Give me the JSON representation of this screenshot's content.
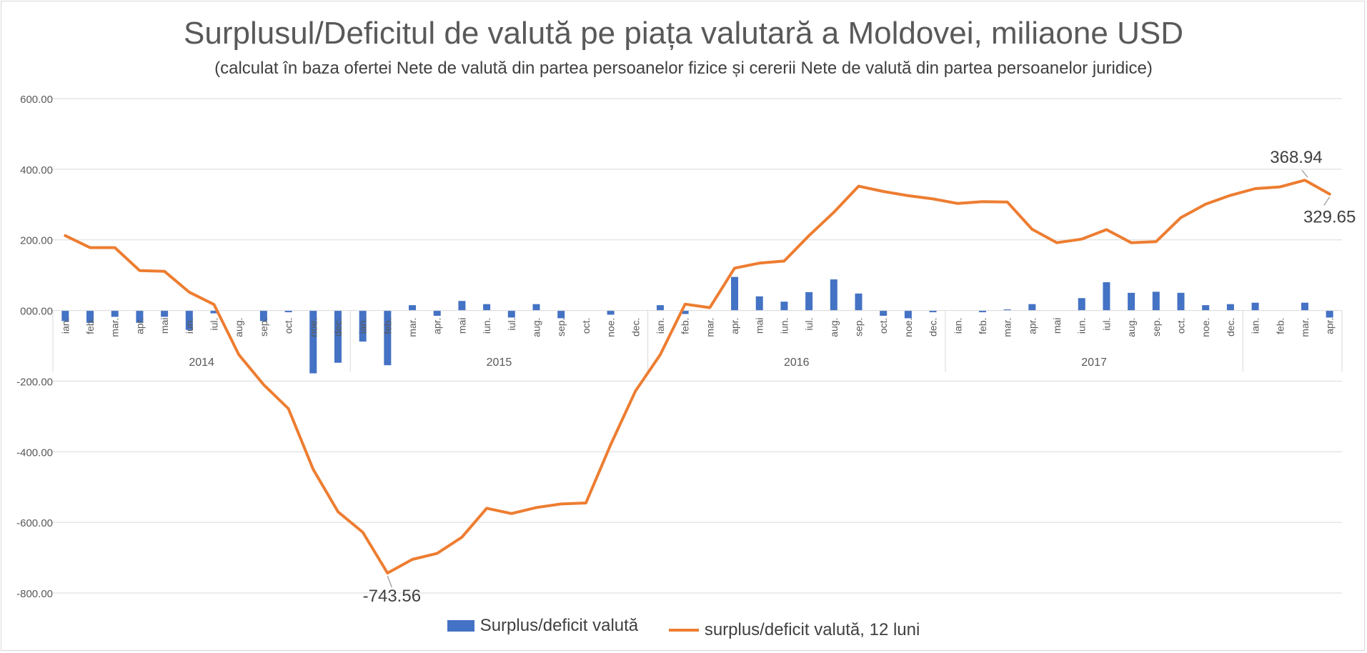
{
  "chart_data": {
    "type": "bar+line",
    "title": "Surplusul/Deficitul de valută pe piața valutară a Moldovei, miliaone USD",
    "subtitle": "(calculat în baza ofertei Nete de valută din partea persoanelor fizice și cererii Nete de valută din partea persoanelor juridice)",
    "ylim": [
      -800,
      600
    ],
    "yticks": [
      "600.00",
      "400.00",
      "200.00",
      "000.00",
      "-200.00",
      "-400.00",
      "-600.00",
      "-800.00"
    ],
    "grid": true,
    "legend_position": "bottom",
    "years": [
      {
        "label": "2014",
        "months": [
          "ian.",
          "feb.",
          "mar.",
          "apr.",
          "mai",
          "iun.",
          "iul.",
          "aug.",
          "sep.",
          "oct.",
          "noe.",
          "dec."
        ]
      },
      {
        "label": "2015",
        "months": [
          "ian.",
          "feb.",
          "mar.",
          "apr.",
          "mai",
          "iun.",
          "iul.",
          "aug.",
          "sep.",
          "oct.",
          "noe.",
          "dec."
        ]
      },
      {
        "label": "2016",
        "months": [
          "ian.",
          "feb.",
          "mar.",
          "apr.",
          "mai",
          "iun.",
          "iul.",
          "aug.",
          "sep.",
          "oct.",
          "noe.",
          "dec."
        ]
      },
      {
        "label": "2017",
        "months": [
          "ian.",
          "feb.",
          "mar.",
          "apr.",
          "mai",
          "iun.",
          "iul.",
          "aug.",
          "sep.",
          "oct.",
          "noe.",
          "dec."
        ]
      },
      {
        "label": "",
        "months": [
          "ian.",
          "feb.",
          "mar.",
          "apr."
        ]
      }
    ],
    "series": [
      {
        "name": "Surplus/deficit valută",
        "type": "bar",
        "color": "#4472c4",
        "values": [
          -30,
          -35,
          -18,
          -35,
          -18,
          -55,
          -8,
          0,
          -30,
          -5,
          -178,
          -148,
          -88,
          -155,
          15,
          -15,
          27,
          18,
          -20,
          18,
          -22,
          0,
          -12,
          0,
          15,
          -10,
          0,
          95,
          40,
          25,
          52,
          88,
          48,
          -15,
          -22,
          -5,
          0,
          -5,
          3,
          18,
          0,
          35,
          80,
          50,
          53,
          50,
          15,
          18,
          22,
          0,
          22,
          -20
        ]
      },
      {
        "name": "surplus/deficit valută, 12 luni",
        "type": "line",
        "color": "#ed7d31",
        "values": [
          212,
          178,
          178,
          113,
          111,
          52,
          17,
          -125,
          -210,
          -278,
          -450,
          -570,
          -628,
          -743.56,
          -705,
          -688,
          -642,
          -560,
          -575,
          -558,
          -548,
          -545,
          -380,
          -228,
          -125,
          18,
          8,
          120,
          134,
          140,
          212,
          278,
          352,
          337,
          325,
          316,
          303,
          308,
          307,
          230,
          192,
          202,
          229,
          192,
          195,
          263,
          301,
          326,
          345,
          350,
          368.94,
          329.65
        ]
      }
    ],
    "annotations": [
      "-743.56",
      "368.94",
      "329.65"
    ]
  }
}
